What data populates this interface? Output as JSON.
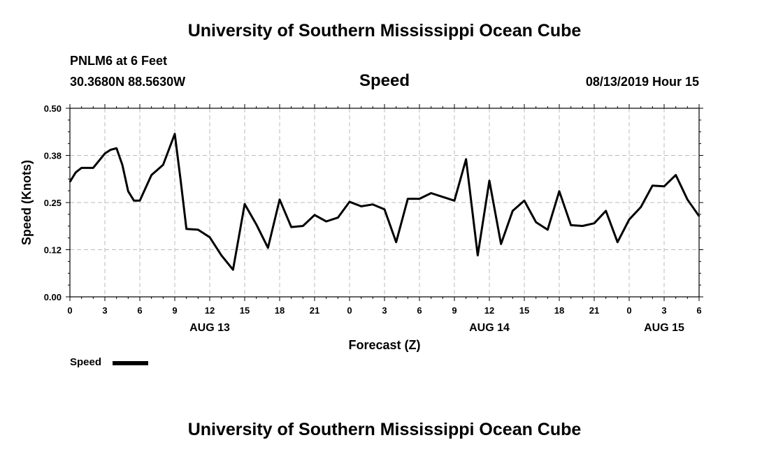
{
  "header": {
    "title_top": "University of Southern Mississippi Ocean Cube",
    "station": "PNLM6 at 6 Feet",
    "coords": "30.3680N 88.5630W",
    "variable": "Speed",
    "timestamp": "08/13/2019 Hour 15"
  },
  "footer": {
    "title_bottom": "University of Southern Mississippi Ocean Cube"
  },
  "legend": {
    "label": "Speed",
    "color": "#000000"
  },
  "chart_data": {
    "type": "line",
    "title": "Speed",
    "xlabel": "Forecast (Z)",
    "ylabel": "Speed (Knots)",
    "xlim": [
      0,
      54
    ],
    "ylim": [
      0,
      0.5
    ],
    "grid": true,
    "y_ticks": [
      {
        "value": 0.0,
        "label": "0.00"
      },
      {
        "value": 0.125,
        "label": "0.12"
      },
      {
        "value": 0.25,
        "label": "0.25"
      },
      {
        "value": 0.375,
        "label": "0.38"
      },
      {
        "value": 0.5,
        "label": "0.50"
      }
    ],
    "x_ticks": [
      {
        "value": 0,
        "label": "0"
      },
      {
        "value": 3,
        "label": "3"
      },
      {
        "value": 6,
        "label": "6"
      },
      {
        "value": 9,
        "label": "9"
      },
      {
        "value": 12,
        "label": "12"
      },
      {
        "value": 15,
        "label": "15"
      },
      {
        "value": 18,
        "label": "18"
      },
      {
        "value": 21,
        "label": "21"
      },
      {
        "value": 24,
        "label": "0"
      },
      {
        "value": 27,
        "label": "3"
      },
      {
        "value": 30,
        "label": "6"
      },
      {
        "value": 33,
        "label": "9"
      },
      {
        "value": 36,
        "label": "12"
      },
      {
        "value": 39,
        "label": "15"
      },
      {
        "value": 42,
        "label": "18"
      },
      {
        "value": 45,
        "label": "21"
      },
      {
        "value": 48,
        "label": "0"
      },
      {
        "value": 51,
        "label": "3"
      },
      {
        "value": 54,
        "label": "6"
      }
    ],
    "date_labels": [
      {
        "value": 12,
        "label": "AUG 13"
      },
      {
        "value": 36,
        "label": "AUG 14"
      },
      {
        "value": 51,
        "label": "AUG 15"
      }
    ],
    "series": [
      {
        "name": "Speed",
        "color": "#000000",
        "x": [
          0,
          0.5,
          1,
          2,
          3,
          3.5,
          4,
          4.5,
          5,
          5.5,
          6,
          7,
          8,
          9,
          9.5,
          10,
          11,
          12,
          13,
          14,
          15,
          16,
          17,
          18,
          19,
          20,
          21,
          22,
          23,
          24,
          25,
          26,
          27,
          28,
          29,
          30,
          31,
          32,
          33,
          34,
          35,
          36,
          37,
          38,
          39,
          40,
          41,
          42,
          43,
          44,
          45,
          46,
          47,
          48,
          49,
          50,
          51,
          52,
          53,
          54
        ],
        "values": [
          0.305,
          0.33,
          0.342,
          0.342,
          0.38,
          0.39,
          0.394,
          0.35,
          0.28,
          0.255,
          0.255,
          0.323,
          0.35,
          0.432,
          0.31,
          0.18,
          0.178,
          0.158,
          0.11,
          0.072,
          0.246,
          0.192,
          0.13,
          0.258,
          0.185,
          0.188,
          0.217,
          0.2,
          0.21,
          0.252,
          0.24,
          0.245,
          0.232,
          0.145,
          0.26,
          0.26,
          0.275,
          0.265,
          0.255,
          0.365,
          0.11,
          0.308,
          0.14,
          0.228,
          0.255,
          0.198,
          0.178,
          0.28,
          0.19,
          0.188,
          0.195,
          0.228,
          0.145,
          0.205,
          0.238,
          0.295,
          0.293,
          0.323,
          0.258,
          0.214
        ]
      }
    ]
  }
}
